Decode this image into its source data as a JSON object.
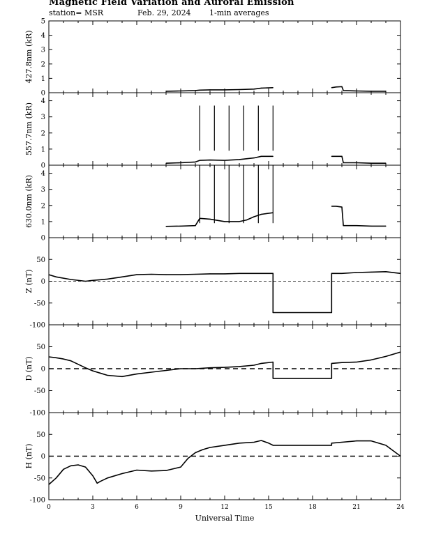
{
  "header": {
    "title": "Magnetic Field Variation and Auroral Emission",
    "station": "station= MSR",
    "date": "Feb. 29, 2024",
    "averaging": "1-min averages"
  },
  "chart_data": [
    {
      "type": "line",
      "ylabel": "427.8nm (kR)",
      "ylim": [
        0,
        5
      ],
      "yticks": [
        0,
        1,
        2,
        3,
        4,
        5
      ],
      "xlim": [
        0,
        24
      ],
      "series": [
        {
          "x": [
            8.0,
            9.0,
            10.0,
            10.3,
            11.0,
            12.0,
            13.0,
            14.0,
            14.5,
            15.3
          ],
          "values": [
            0.1,
            0.12,
            0.15,
            0.18,
            0.2,
            0.2,
            0.22,
            0.25,
            0.32,
            0.35
          ]
        },
        {
          "x": [
            19.3,
            19.6,
            20.0,
            20.1,
            21.0,
            22.0,
            23.0
          ],
          "values": [
            0.35,
            0.4,
            0.42,
            0.15,
            0.12,
            0.1,
            0.1
          ]
        }
      ]
    },
    {
      "type": "line",
      "ylabel": "557.7nm (kR)",
      "ylim": [
        0,
        4.5
      ],
      "yticks": [
        0,
        1,
        2,
        3,
        4
      ],
      "xlim": [
        0,
        24
      ],
      "series": [
        {
          "x": [
            8.0,
            9.0,
            10.0,
            10.3,
            11.0,
            12.0,
            13.0,
            14.0,
            14.5,
            15.3
          ],
          "values": [
            0.12,
            0.15,
            0.2,
            0.3,
            0.32,
            0.3,
            0.35,
            0.45,
            0.55,
            0.55
          ]
        },
        {
          "x": [
            19.3,
            19.6,
            20.0,
            20.1,
            21.0,
            22.0,
            23.0
          ],
          "values": [
            0.55,
            0.55,
            0.55,
            0.15,
            0.15,
            0.12,
            0.12
          ]
        }
      ],
      "spikes": {
        "x": [
          10.3,
          11.3,
          12.3,
          13.3,
          14.3,
          15.3
        ],
        "value": 3.7
      }
    },
    {
      "type": "line",
      "ylabel": "630.0nm (kR)",
      "ylim": [
        0,
        4.5
      ],
      "yticks": [
        0,
        1,
        2,
        3,
        4
      ],
      "xlim": [
        0,
        24
      ],
      "series": [
        {
          "x": [
            8.0,
            9.0,
            10.0,
            10.3,
            11.0,
            12.0,
            13.0,
            13.5,
            14.0,
            14.5,
            15.3
          ],
          "values": [
            0.7,
            0.72,
            0.75,
            1.2,
            1.15,
            1.0,
            1.0,
            1.1,
            1.3,
            1.45,
            1.55
          ]
        },
        {
          "x": [
            19.3,
            19.6,
            20.0,
            20.1,
            21.0,
            22.0,
            23.0
          ],
          "values": [
            1.95,
            1.95,
            1.9,
            0.75,
            0.75,
            0.72,
            0.72
          ]
        }
      ],
      "spikes": {
        "x": [
          10.3,
          11.3,
          12.3,
          13.3,
          14.3,
          15.3
        ],
        "value": 4.5
      }
    },
    {
      "type": "line",
      "ylabel": "Z (nT)",
      "ylim": [
        -100,
        100
      ],
      "yticks": [
        -100,
        -50,
        0,
        50
      ],
      "xlim": [
        0,
        24
      ],
      "series": [
        {
          "x": [
            0,
            0.5,
            1.5,
            2.5,
            3.0,
            4.0,
            5.0,
            6.0,
            7.0,
            8.0,
            9.0,
            10.0,
            11.0,
            12.0,
            13.0,
            14.0,
            15.3,
            15.3,
            19.3,
            19.3,
            20.0,
            21.0,
            22.0,
            23.0,
            24.0
          ],
          "values": [
            15,
            10,
            4,
            0,
            2,
            5,
            10,
            15,
            16,
            15,
            15,
            16,
            17,
            17,
            18,
            18,
            18,
            -72,
            -72,
            18,
            18,
            20,
            21,
            22,
            18
          ]
        }
      ],
      "zero_line": true
    },
    {
      "type": "line",
      "ylabel": "D (nT)",
      "ylim": [
        -100,
        100
      ],
      "yticks": [
        -100,
        -50,
        0,
        50
      ],
      "xlim": [
        0,
        24
      ],
      "series": [
        {
          "x": [
            0,
            0.5,
            1.0,
            1.5,
            2.0,
            2.5,
            3.0,
            3.5,
            4.0,
            5.0,
            6.0,
            7.0,
            8.0,
            9.0,
            10.0,
            11.0,
            12.0,
            13.0,
            14.0,
            14.5,
            15.3,
            15.3,
            19.3,
            19.3,
            20.0,
            21.0,
            22.0,
            23.0,
            24.0
          ],
          "values": [
            27,
            25,
            22,
            18,
            10,
            2,
            -5,
            -10,
            -15,
            -18,
            -12,
            -8,
            -4,
            0,
            0,
            2,
            3,
            5,
            8,
            12,
            15,
            -22,
            -22,
            12,
            14,
            15,
            20,
            28,
            38
          ]
        }
      ],
      "zero_line": true
    },
    {
      "type": "line",
      "xlabel": "Universal Time",
      "ylabel": "H (nT)",
      "ylim": [
        -100,
        100
      ],
      "yticks": [
        -100,
        -50,
        0,
        50
      ],
      "xlim": [
        0,
        24
      ],
      "xticks": [
        0,
        3,
        6,
        9,
        12,
        15,
        18,
        21,
        24
      ],
      "series": [
        {
          "x": [
            0,
            0.5,
            1.0,
            1.5,
            2.0,
            2.5,
            3.0,
            3.3,
            3.5,
            4.0,
            5.0,
            6.0,
            7.0,
            8.0,
            9.0,
            9.5,
            10.0,
            10.5,
            11.0,
            12.0,
            13.0,
            14.0,
            14.5,
            15.0,
            15.3,
            19.3,
            19.3,
            20.0,
            21.0,
            22.0,
            23.0,
            24.0
          ],
          "values": [
            -65,
            -50,
            -30,
            -22,
            -20,
            -25,
            -45,
            -62,
            -58,
            -50,
            -40,
            -32,
            -34,
            -33,
            -25,
            -5,
            8,
            15,
            20,
            25,
            30,
            32,
            36,
            30,
            25,
            25,
            30,
            32,
            35,
            35,
            25,
            0
          ]
        }
      ],
      "zero_line": true
    }
  ]
}
